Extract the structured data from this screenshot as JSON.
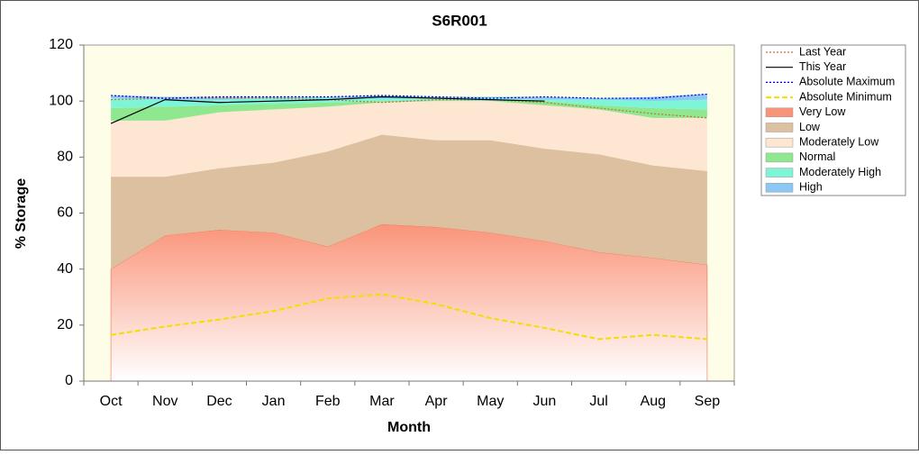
{
  "chart_data": {
    "type": "area",
    "title": "S6R001",
    "x_label": "Month",
    "y_label": "% Storage",
    "categories": [
      "Oct",
      "Nov",
      "Dec",
      "Jan",
      "Feb",
      "Mar",
      "Apr",
      "May",
      "Jun",
      "Jul",
      "Aug",
      "Sep"
    ],
    "ylim": [
      0,
      120
    ],
    "yticks": [
      0,
      20,
      40,
      60,
      80,
      100,
      120
    ],
    "bands": [
      {
        "name": "Very Low",
        "color": "#fa9479",
        "values": [
          40,
          52,
          54,
          53,
          48,
          56,
          55,
          53,
          50,
          46,
          44,
          41.5
        ]
      },
      {
        "name": "Low",
        "color": "#dcc0a0",
        "values": [
          33,
          21,
          22,
          25,
          34,
          32,
          31,
          33,
          33,
          35,
          33,
          33.5
        ]
      },
      {
        "name": "Moderately Low",
        "color": "#fde6d2",
        "values": [
          20,
          20,
          20,
          19,
          16,
          11.5,
          14,
          14,
          15.5,
          16,
          17,
          19
        ]
      },
      {
        "name": "Normal",
        "color": "#8fe88f",
        "values": [
          4.5,
          5,
          2.5,
          2,
          1.5,
          0.5,
          0.5,
          0,
          1.5,
          1.5,
          3.5,
          3
        ]
      },
      {
        "name": "Moderately High",
        "color": "#7ff5d8",
        "values": [
          3.5,
          2.5,
          2,
          2,
          1.5,
          1,
          0.5,
          1,
          0.5,
          2,
          2.5,
          3.5
        ]
      },
      {
        "name": "High",
        "color": "#8cc8f5",
        "values": [
          1,
          1,
          1,
          0.5,
          0.5,
          1,
          0.5,
          0.5,
          1,
          0.5,
          1.5,
          2
        ]
      }
    ],
    "series": [
      {
        "name": "Last Year",
        "color": "#c0733a",
        "style": "dotted",
        "values": [
          100.5,
          101,
          101,
          101,
          100.5,
          99.5,
          100.5,
          100.5,
          99.5,
          97.5,
          95.5,
          94
        ]
      },
      {
        "name": "This Year",
        "color": "#000000",
        "style": "solid",
        "values": [
          92,
          100.5,
          99.5,
          100,
          100.5,
          101.5,
          101,
          100.5,
          100,
          null,
          null,
          null
        ]
      },
      {
        "name": "Absolute Maximum",
        "color": "#0000cc",
        "style": "dotted",
        "values": [
          102,
          101,
          101.5,
          101.5,
          101.5,
          102,
          101.5,
          101,
          101.5,
          101,
          101,
          102.5
        ]
      },
      {
        "name": "Absolute Minimum",
        "color": "#f0e000",
        "style": "dashed",
        "values": [
          16.5,
          19.5,
          22,
          25,
          29.5,
          31,
          27.5,
          22.5,
          19,
          15,
          16.5,
          15
        ]
      }
    ]
  }
}
